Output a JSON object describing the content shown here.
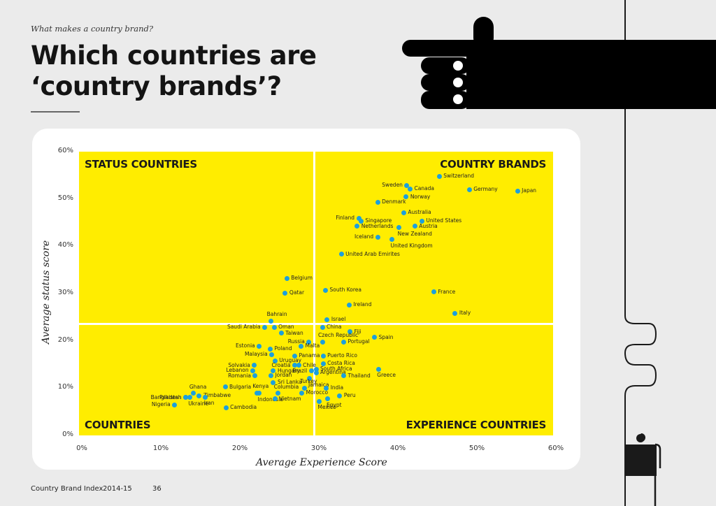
{
  "header": {
    "kicker": "What makes a country brand?",
    "title_line1": "Which countries are",
    "title_line2": "‘country brands’?"
  },
  "footer": {
    "publication": "Country Brand Index",
    "year": "2014-15",
    "page": "36"
  },
  "colors": {
    "plot_background": "#ffed00",
    "dot": "#1ca0dc",
    "page_background": "#ebebeb",
    "card": "#ffffff",
    "illustration": "#000000"
  },
  "icons": {
    "pointing_hand": "pointing-hand-illustration",
    "person_figure": "person-at-desk-illustration"
  },
  "chart_data": {
    "type": "scatter",
    "title": "Which countries are ‘country brands’?",
    "xlabel": "Average Experience Score",
    "ylabel": "Average status score",
    "xlim": [
      0,
      60
    ],
    "ylim": [
      0,
      60
    ],
    "x_ticks": [
      "0%",
      "10%",
      "20%",
      "30%",
      "40%",
      "50%",
      "60%"
    ],
    "y_ticks": [
      "0%",
      "10%",
      "20%",
      "30%",
      "40%",
      "50%",
      "60%"
    ],
    "grid": false,
    "legend": null,
    "quadrant_dividers": {
      "x": 29.8,
      "y": 23.6
    },
    "quadrants": {
      "top_left": "STATUS COUNTRIES",
      "top_right": "COUNTRY BRANDS",
      "bottom_left": "COUNTRIES",
      "bottom_right": "EXPERIENCE COUNTRIES"
    },
    "points": [
      {
        "name": "Switzerland",
        "x": 45.6,
        "y": 54.8,
        "label_pos": "r"
      },
      {
        "name": "Sweden",
        "x": 41.5,
        "y": 52.9,
        "label_pos": "l"
      },
      {
        "name": "Canada",
        "x": 41.9,
        "y": 52.1,
        "label_pos": "r"
      },
      {
        "name": "Germany",
        "x": 49.4,
        "y": 52.0,
        "label_pos": "r"
      },
      {
        "name": "Japan",
        "x": 55.5,
        "y": 51.7,
        "label_pos": "r"
      },
      {
        "name": "Norway",
        "x": 41.4,
        "y": 50.4,
        "label_pos": "r"
      },
      {
        "name": "Denmark",
        "x": 37.8,
        "y": 49.3,
        "label_pos": "r"
      },
      {
        "name": "Australia",
        "x": 41.1,
        "y": 47.1,
        "label_pos": "r"
      },
      {
        "name": "Finland",
        "x": 35.4,
        "y": 45.9,
        "label_pos": "l"
      },
      {
        "name": "Singapore",
        "x": 35.7,
        "y": 45.3,
        "label_pos": "r"
      },
      {
        "name": "United States",
        "x": 43.4,
        "y": 45.3,
        "label_pos": "r"
      },
      {
        "name": "Netherlands",
        "x": 35.2,
        "y": 44.2,
        "label_pos": "r"
      },
      {
        "name": "Austria",
        "x": 42.5,
        "y": 44.2,
        "label_pos": "r"
      },
      {
        "name": "New Zealand",
        "x": 40.5,
        "y": 43.9,
        "label_pos": "b"
      },
      {
        "name": "Iceland",
        "x": 37.8,
        "y": 41.9,
        "label_pos": "l"
      },
      {
        "name": "United Kingdom",
        "x": 39.6,
        "y": 41.4,
        "label_pos": "b"
      },
      {
        "name": "United Arab Emirites",
        "x": 33.2,
        "y": 38.3,
        "label_pos": "r"
      },
      {
        "name": "Belgium",
        "x": 26.3,
        "y": 33.2,
        "label_pos": "r"
      },
      {
        "name": "Qatar",
        "x": 26.1,
        "y": 30.1,
        "label_pos": "r"
      },
      {
        "name": "South Korea",
        "x": 31.2,
        "y": 30.7,
        "label_pos": "r"
      },
      {
        "name": "France",
        "x": 44.9,
        "y": 30.3,
        "label_pos": "r"
      },
      {
        "name": "Ireland",
        "x": 34.2,
        "y": 27.6,
        "label_pos": "r"
      },
      {
        "name": "Italy",
        "x": 47.6,
        "y": 25.8,
        "label_pos": "r"
      },
      {
        "name": "Bahrain",
        "x": 24.3,
        "y": 24.2,
        "label_pos": "a"
      },
      {
        "name": "Israel",
        "x": 31.4,
        "y": 24.5,
        "label_pos": "r"
      },
      {
        "name": "China",
        "x": 30.8,
        "y": 22.9,
        "label_pos": "r"
      },
      {
        "name": "Saudi Arabia",
        "x": 23.5,
        "y": 22.9,
        "label_pos": "l"
      },
      {
        "name": "Oman",
        "x": 24.7,
        "y": 22.9,
        "label_pos": "r"
      },
      {
        "name": "Taiwan",
        "x": 25.6,
        "y": 21.6,
        "label_pos": "r"
      },
      {
        "name": "Fiji",
        "x": 34.3,
        "y": 21.9,
        "label_pos": "r"
      },
      {
        "name": "Spain",
        "x": 37.4,
        "y": 20.7,
        "label_pos": "r"
      },
      {
        "name": "Russia",
        "x": 29.1,
        "y": 19.8,
        "label_pos": "l"
      },
      {
        "name": "Czech Republic",
        "x": 30.8,
        "y": 19.8,
        "label_pos": "a"
      },
      {
        "name": "Portugal",
        "x": 33.5,
        "y": 19.8,
        "label_pos": "r"
      },
      {
        "name": "Estonia",
        "x": 22.8,
        "y": 18.9,
        "label_pos": "l"
      },
      {
        "name": "Poland",
        "x": 24.2,
        "y": 18.3,
        "label_pos": "r"
      },
      {
        "name": "Malta",
        "x": 28.1,
        "y": 18.9,
        "label_pos": "r"
      },
      {
        "name": "Malaysia",
        "x": 24.4,
        "y": 17.1,
        "label_pos": "l"
      },
      {
        "name": "Panama",
        "x": 27.3,
        "y": 16.8,
        "label_pos": "r"
      },
      {
        "name": "Puerto Rico",
        "x": 30.9,
        "y": 16.8,
        "label_pos": "r"
      },
      {
        "name": "Uruguay",
        "x": 24.8,
        "y": 15.8,
        "label_pos": "r"
      },
      {
        "name": "Solvakia",
        "x": 22.2,
        "y": 14.8,
        "label_pos": "l"
      },
      {
        "name": "Croatia",
        "x": 27.3,
        "y": 14.8,
        "label_pos": "l"
      },
      {
        "name": "Chile",
        "x": 27.8,
        "y": 14.8,
        "label_pos": "r"
      },
      {
        "name": "Costa Rica",
        "x": 30.9,
        "y": 15.2,
        "label_pos": "r"
      },
      {
        "name": "Lebanon",
        "x": 22.0,
        "y": 13.7,
        "label_pos": "l"
      },
      {
        "name": "Hungary",
        "x": 24.6,
        "y": 13.6,
        "label_pos": "r"
      },
      {
        "name": "South Africa",
        "x": 30.0,
        "y": 14.0,
        "label_pos": "r"
      },
      {
        "name": "Brazil",
        "x": 29.4,
        "y": 13.6,
        "label_pos": "l"
      },
      {
        "name": "Argentina",
        "x": 30.0,
        "y": 13.3,
        "label_pos": "r"
      },
      {
        "name": "Jordan",
        "x": 24.3,
        "y": 12.7,
        "label_pos": "r"
      },
      {
        "name": "Romania",
        "x": 22.3,
        "y": 12.6,
        "label_pos": "l"
      },
      {
        "name": "Thailand",
        "x": 33.5,
        "y": 12.6,
        "label_pos": "r"
      },
      {
        "name": "Greece",
        "x": 37.9,
        "y": 14.0,
        "label_pos": "b"
      },
      {
        "name": "Jamaica",
        "x": 29.2,
        "y": 12.0,
        "label_pos": "b"
      },
      {
        "name": "Sri Lanka",
        "x": 24.6,
        "y": 11.2,
        "label_pos": "r"
      },
      {
        "name": "Turkey",
        "x": 28.5,
        "y": 10.0,
        "label_pos": "a"
      },
      {
        "name": "India",
        "x": 31.3,
        "y": 10.0,
        "label_pos": "r"
      },
      {
        "name": "Bulgaria",
        "x": 18.5,
        "y": 10.2,
        "label_pos": "r"
      },
      {
        "name": "Kenya",
        "x": 22.5,
        "y": 9.0,
        "label_pos": "a"
      },
      {
        "name": "Indonesia",
        "x": 22.8,
        "y": 8.9,
        "label_pos": "b"
      },
      {
        "name": "Columbia",
        "x": 25.2,
        "y": 8.9,
        "label_pos": "a"
      },
      {
        "name": "Morocco",
        "x": 28.2,
        "y": 9.0,
        "label_pos": "r"
      },
      {
        "name": "Vietnam",
        "x": 24.8,
        "y": 7.7,
        "label_pos": "r"
      },
      {
        "name": "Peru",
        "x": 33.0,
        "y": 8.4,
        "label_pos": "r"
      },
      {
        "name": "Egypt",
        "x": 31.5,
        "y": 7.7,
        "label_pos": "b"
      },
      {
        "name": "Mexico",
        "x": 30.4,
        "y": 7.2,
        "label_pos": "b"
      },
      {
        "name": "Ghana",
        "x": 14.5,
        "y": 8.9,
        "label_pos": "a"
      },
      {
        "name": "Pakistan",
        "x": 13.5,
        "y": 8.0,
        "label_pos": "l"
      },
      {
        "name": "Zimbabwe",
        "x": 15.2,
        "y": 8.4,
        "label_pos": "r"
      },
      {
        "name": "Bangladesh",
        "x": 13.5,
        "y": 8.0,
        "label_pos": "l"
      },
      {
        "name": "Ukraine",
        "x": 14.0,
        "y": 8.0,
        "label_pos": "b"
      },
      {
        "name": "Iran",
        "x": 16.0,
        "y": 8.1,
        "label_pos": "b"
      },
      {
        "name": "Nigeria",
        "x": 12.1,
        "y": 6.5,
        "label_pos": "l"
      },
      {
        "name": "Cambodia",
        "x": 18.6,
        "y": 5.9,
        "label_pos": "r"
      }
    ]
  }
}
